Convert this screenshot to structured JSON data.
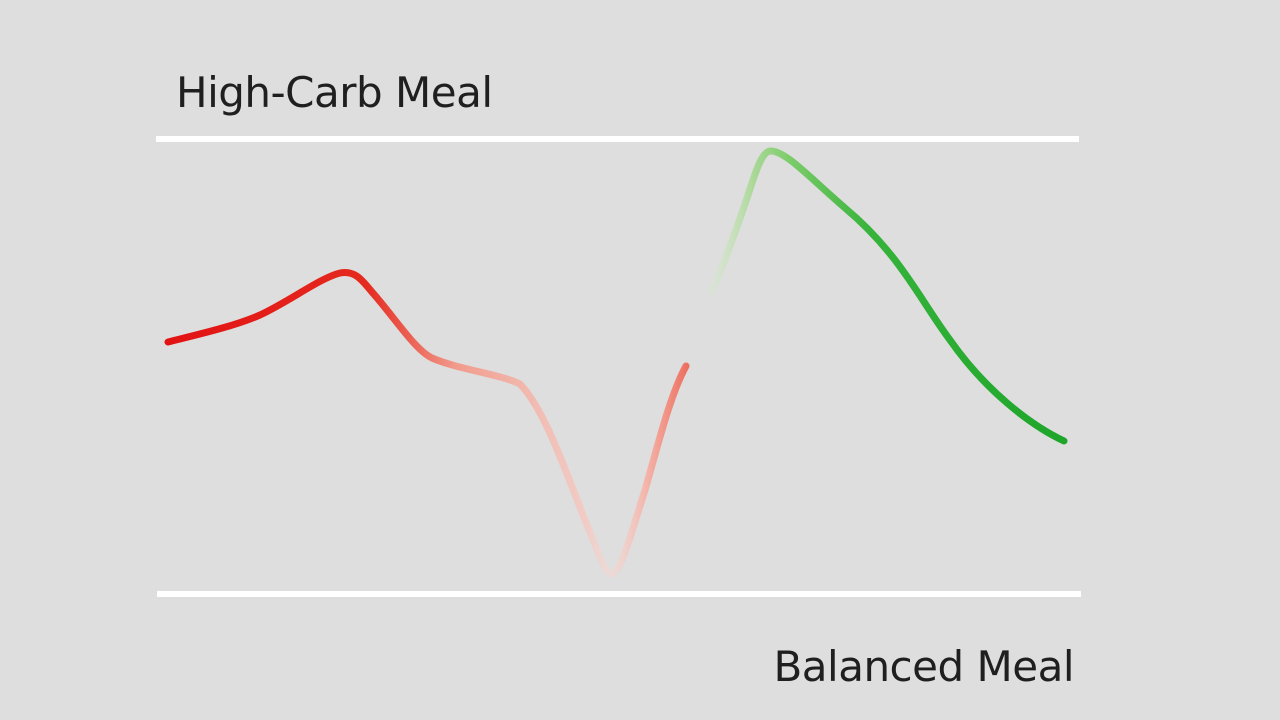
{
  "labels": {
    "top": "High-Carb Meal",
    "bottom": "Balanced Meal"
  },
  "colors": {
    "background": "#dedede",
    "guide_lines": "#ffffff",
    "high_carb_curve": "#e01515",
    "high_carb_curve_faded": "#f4b5aa",
    "balanced_curve": "#1fb02a",
    "balanced_curve_faded": "#cfe5c4",
    "text": "#1f1f1f"
  }
}
